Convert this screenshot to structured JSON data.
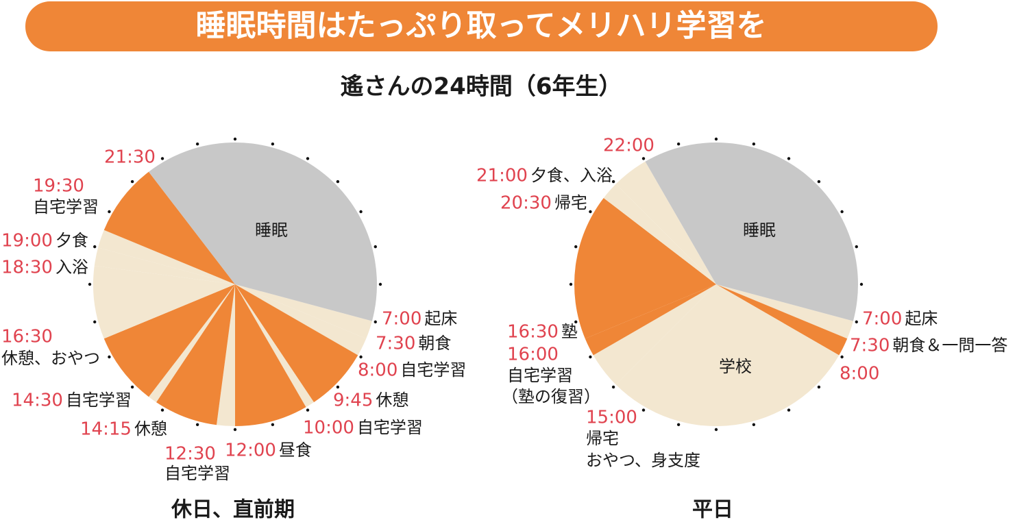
{
  "header": {
    "title": "睡眠時間はたっぷり取ってメリハリ学習を",
    "subtitle": "遙さんの24時間（6年生）"
  },
  "chart_data": [
    {
      "type": "pie",
      "title": "休日、直前期",
      "clock_hours": 24,
      "start": 7,
      "slices": [
        {
          "time": "7:00",
          "label": [
            "起床"
          ],
          "hours": 0.5,
          "color": "#f3e7d0"
        },
        {
          "time": "7:30",
          "label": [
            "朝食"
          ],
          "hours": 0.5,
          "color": "#f3e7d0"
        },
        {
          "time": "8:00",
          "label": [
            "自宅学習"
          ],
          "hours": 1.75,
          "color": "#ef8637"
        },
        {
          "time": "9:45",
          "label": [
            "休憩"
          ],
          "hours": 0.25,
          "color": "#f3e7d0"
        },
        {
          "time": "10:00",
          "label": [
            "自宅学習"
          ],
          "hours": 2,
          "color": "#ef8637"
        },
        {
          "time": "12:00",
          "label": [
            "昼食"
          ],
          "hours": 0.5,
          "color": "#f3e7d0"
        },
        {
          "time": "12:30",
          "label": [
            "自宅学習"
          ],
          "hours": 1.75,
          "color": "#ef8637"
        },
        {
          "time": "14:15",
          "label": [
            "休憩"
          ],
          "hours": 0.25,
          "color": "#f3e7d0"
        },
        {
          "time": "14:30",
          "label": [
            "自宅学習"
          ],
          "hours": 2,
          "color": "#ef8637"
        },
        {
          "time": "16:30",
          "label": [
            "休憩、おやつ"
          ],
          "hours": 2,
          "color": "#f3e7d0"
        },
        {
          "time": "18:30",
          "label": [
            "入浴"
          ],
          "hours": 0.5,
          "color": "#f3e7d0"
        },
        {
          "time": "19:00",
          "label": [
            "夕食"
          ],
          "hours": 0.5,
          "color": "#f3e7d0"
        },
        {
          "time": "19:30",
          "label": [
            "自宅学習"
          ],
          "hours": 2,
          "color": "#ef8637"
        },
        {
          "time": "21:30",
          "inner_label": "睡眠",
          "hours": 9.5,
          "color": "#c8c8c8"
        }
      ]
    },
    {
      "type": "pie",
      "title": "平日",
      "clock_hours": 24,
      "start": 7,
      "slices": [
        {
          "time": "7:00",
          "label": [
            "起床"
          ],
          "hours": 0.5,
          "color": "#f3e7d0"
        },
        {
          "time": "7:30",
          "label": [
            "朝食＆一問一答"
          ],
          "hours": 0.5,
          "color": "#ef8637"
        },
        {
          "time": "8:00",
          "inner_label": "学校",
          "hours": 7,
          "color": "#f3e7d0"
        },
        {
          "time": "15:00",
          "label": [
            "帰宅",
            "おやつ、身支度"
          ],
          "hours": 1,
          "color": "#f3e7d0"
        },
        {
          "time": "16:00",
          "label": [
            "自宅学習",
            "（塾の復習）"
          ],
          "hours": 0.5,
          "color": "#ef8637"
        },
        {
          "time": "16:30",
          "label": [
            "塾"
          ],
          "hours": 4,
          "color": "#ef8637"
        },
        {
          "time": "20:30",
          "label": [
            "帰宅"
          ],
          "hours": 0.5,
          "color": "#f3e7d0"
        },
        {
          "time": "21:00",
          "label": [
            "夕食、入浴"
          ],
          "hours": 1,
          "color": "#f3e7d0"
        },
        {
          "time": "22:00",
          "inner_label": "睡眠",
          "hours": 9,
          "color": "#c8c8c8"
        }
      ]
    }
  ]
}
